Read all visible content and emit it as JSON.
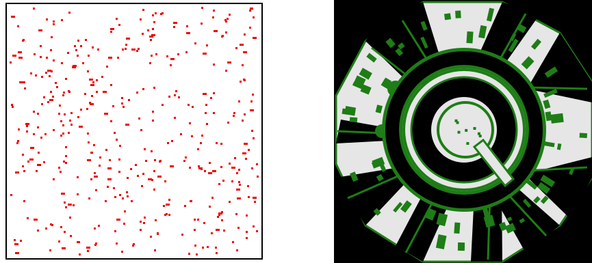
{
  "figure": {
    "left": {
      "kind": "random-scatter-map",
      "background_color": "#ffffff",
      "border_color": "#000000",
      "dot_color": "#ee0000",
      "dot_count": 420,
      "seed": 13
    },
    "right": {
      "kind": "circular-occupancy-map",
      "background_color": "#000000",
      "free_space_color": "#e6e6e6",
      "obstacle_color": "#1e7d16",
      "inner_courtyard_obstacles": 8,
      "outer_ring_buildings": 60,
      "seed": 7
    }
  }
}
